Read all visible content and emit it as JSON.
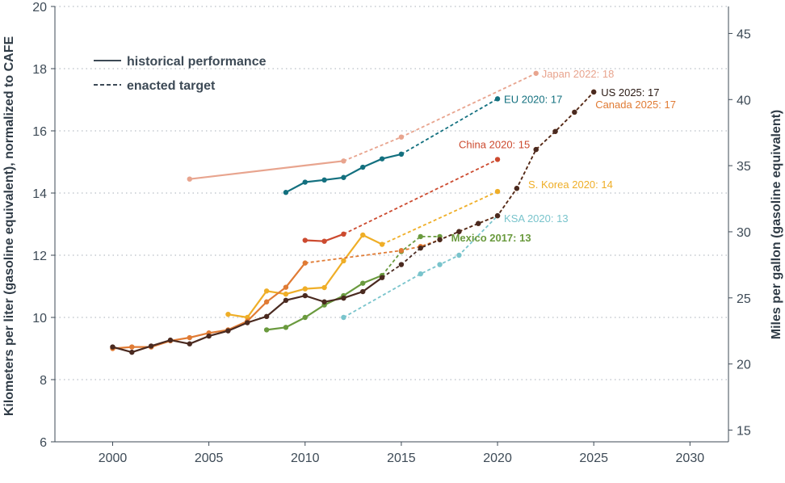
{
  "chart_data": {
    "type": "line",
    "xlim": [
      1997,
      2032
    ],
    "ylim": [
      6,
      20
    ],
    "x_ticks": [
      2000,
      2005,
      2010,
      2015,
      2020,
      2025,
      2030
    ],
    "y_ticks": [
      6,
      8,
      10,
      12,
      14,
      16,
      18,
      20
    ],
    "ylabel": "Kilometers per liter (gasoline equivalent), normalized to CAFE",
    "ylabel2": "Miles per gallon (gasoline equivalent)",
    "y2_ticks": [
      15,
      20,
      25,
      30,
      35,
      40,
      45
    ],
    "grid": "horizontal dotted",
    "legend": {
      "position": "top-left",
      "entries": [
        {
          "label": "historical performance",
          "style": "solid"
        },
        {
          "label": "enacted target",
          "style": "dashed"
        }
      ]
    },
    "series": [
      {
        "name": "Japan 2022: 18",
        "color": "#e8a48e",
        "historical": [
          [
            2004,
            14.45
          ],
          [
            2012,
            15.03
          ]
        ],
        "target": [
          [
            2012,
            15.03
          ],
          [
            2015,
            15.8
          ],
          [
            2022,
            17.85
          ]
        ]
      },
      {
        "name": "EU 2020: 17",
        "color": "#13707f",
        "historical": [
          [
            2009,
            14.02
          ],
          [
            2010,
            14.35
          ],
          [
            2011,
            14.42
          ],
          [
            2012,
            14.5
          ],
          [
            2013,
            14.83
          ],
          [
            2014,
            15.1
          ],
          [
            2015,
            15.25
          ]
        ],
        "target": [
          [
            2015,
            15.25
          ],
          [
            2020,
            17.03
          ]
        ]
      },
      {
        "name": "China 2020: 15",
        "color": "#cc4a2f",
        "historical": [
          [
            2010,
            12.48
          ],
          [
            2011,
            12.45
          ],
          [
            2012,
            12.68
          ]
        ],
        "target": [
          [
            2012,
            12.68
          ],
          [
            2020,
            15.08
          ]
        ]
      },
      {
        "name": "S. Korea 2020: 14",
        "color": "#efae27",
        "historical": [
          [
            2006,
            10.1
          ],
          [
            2007,
            10.0
          ],
          [
            2008,
            10.85
          ],
          [
            2009,
            10.75
          ],
          [
            2010,
            10.92
          ],
          [
            2011,
            10.96
          ],
          [
            2012,
            11.82
          ],
          [
            2013,
            12.65
          ],
          [
            2014,
            12.35
          ]
        ],
        "target": [
          [
            2014,
            12.35
          ],
          [
            2020,
            14.05
          ]
        ]
      },
      {
        "name": "Canada 2025: 17",
        "color": "#e07b34",
        "historical": [
          [
            2000,
            9.0
          ],
          [
            2001,
            9.05
          ],
          [
            2002,
            9.05
          ],
          [
            2003,
            9.25
          ],
          [
            2004,
            9.35
          ],
          [
            2005,
            9.5
          ],
          [
            2006,
            9.6
          ],
          [
            2007,
            9.88
          ],
          [
            2008,
            10.5
          ],
          [
            2009,
            10.97
          ],
          [
            2010,
            11.75
          ]
        ],
        "target": [
          [
            2010,
            11.75
          ],
          [
            2015,
            12.15
          ],
          [
            2016,
            12.28
          ],
          [
            2017,
            12.5
          ],
          [
            2018,
            12.76
          ],
          [
            2019,
            13.02
          ],
          [
            2020,
            13.27
          ],
          [
            2021,
            14.15
          ],
          [
            2022,
            15.4
          ],
          [
            2023,
            15.98
          ],
          [
            2024,
            16.6
          ],
          [
            2025,
            17.25
          ]
        ]
      },
      {
        "name": "US 2025: 17",
        "color": "#4a2a20",
        "historical": [
          [
            2000,
            9.05
          ],
          [
            2001,
            8.88
          ],
          [
            2002,
            9.08
          ],
          [
            2003,
            9.27
          ],
          [
            2004,
            9.15
          ],
          [
            2005,
            9.4
          ],
          [
            2006,
            9.57
          ],
          [
            2007,
            9.83
          ],
          [
            2008,
            10.03
          ],
          [
            2009,
            10.55
          ],
          [
            2010,
            10.7
          ],
          [
            2011,
            10.5
          ],
          [
            2012,
            10.62
          ],
          [
            2013,
            10.83
          ],
          [
            2014,
            11.28
          ]
        ],
        "target": [
          [
            2014,
            11.28
          ],
          [
            2015,
            11.7
          ],
          [
            2016,
            12.23
          ],
          [
            2017,
            12.5
          ],
          [
            2018,
            12.76
          ],
          [
            2019,
            13.02
          ],
          [
            2020,
            13.27
          ],
          [
            2021,
            14.15
          ],
          [
            2022,
            15.4
          ],
          [
            2023,
            15.98
          ],
          [
            2024,
            16.6
          ],
          [
            2025,
            17.25
          ]
        ]
      },
      {
        "name": "Mexico 2017: 13",
        "color": "#6a9a3e",
        "historical": [
          [
            2008,
            9.6
          ],
          [
            2009,
            9.68
          ],
          [
            2010,
            10.0
          ],
          [
            2011,
            10.4
          ],
          [
            2012,
            10.7
          ],
          [
            2013,
            11.1
          ],
          [
            2014,
            11.35
          ]
        ],
        "target": [
          [
            2014,
            11.35
          ],
          [
            2015,
            12.12
          ],
          [
            2016,
            12.6
          ],
          [
            2017,
            12.6
          ]
        ]
      },
      {
        "name": "KSA 2020: 13",
        "color": "#79c4cc",
        "historical": [],
        "target": [
          [
            2012,
            10.0
          ],
          [
            2016,
            11.4
          ],
          [
            2017,
            11.7
          ],
          [
            2018,
            12.0
          ],
          [
            2020,
            13.27
          ]
        ]
      }
    ]
  }
}
